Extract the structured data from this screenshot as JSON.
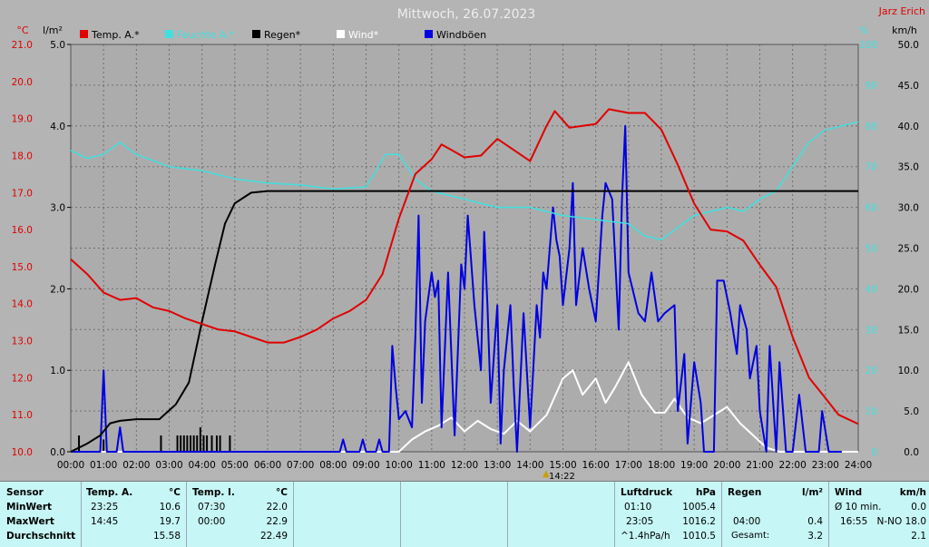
{
  "title": "Mittwoch, 26.07.2023",
  "brand": "Jarz Erich",
  "colors": {
    "bg": "#b4b4b4",
    "plot": "#acacac",
    "temp": "#e00000",
    "humidity": "#40e0e0",
    "rain": "#000000",
    "wind": "#ffffff",
    "gusts": "#0000e0",
    "panel": "#c6f6f5"
  },
  "legend": [
    "Temp. A.*",
    "Feuchte A.*",
    "Regen*",
    "Wind*",
    "Windböen"
  ],
  "units": {
    "temp": "°C",
    "rain": "l/m²",
    "humidity": "%",
    "wind": "km/h"
  },
  "marker_label": "14:22",
  "chart_data": {
    "type": "line",
    "title": "Mittwoch, 26.07.2023",
    "x_ticks": [
      "00:00",
      "01:00",
      "02:00",
      "03:00",
      "04:00",
      "05:00",
      "06:00",
      "07:00",
      "08:00",
      "09:00",
      "10:00",
      "11:00",
      "12:00",
      "13:00",
      "14:00",
      "15:00",
      "16:00",
      "17:00",
      "18:00",
      "19:00",
      "20:00",
      "21:00",
      "22:00",
      "23:00",
      "24:00"
    ],
    "axes": {
      "temp": {
        "label": "°C",
        "range": [
          10.0,
          21.0
        ],
        "ticks": [
          "10.0",
          "11.0",
          "12.0",
          "13.0",
          "14.0",
          "15.0",
          "16.0",
          "17.0",
          "18.0",
          "19.0",
          "20.0",
          "21.0"
        ]
      },
      "rain": {
        "label": "l/m²",
        "range": [
          0.0,
          5.0
        ],
        "ticks": [
          "0.0",
          "1.0",
          "2.0",
          "3.0",
          "4.0",
          "5.0"
        ]
      },
      "humidity": {
        "label": "%",
        "range": [
          0,
          100
        ],
        "ticks": [
          "0",
          "10",
          "20",
          "30",
          "40",
          "50",
          "60",
          "70",
          "80",
          "90",
          "100"
        ]
      },
      "wind": {
        "label": "km/h",
        "range": [
          0.0,
          50.0
        ],
        "ticks": [
          "0.0",
          "5.0",
          "10.0",
          "15.0",
          "20.0",
          "25.0",
          "30.0",
          "35.0",
          "40.0",
          "45.0",
          "50.0"
        ]
      }
    },
    "grid": true,
    "legend_position": "top-left",
    "series": [
      {
        "name": "Temp. A.*",
        "axis": "temp",
        "points": [
          [
            0,
            15.2
          ],
          [
            0.5,
            14.8
          ],
          [
            1,
            14.3
          ],
          [
            1.5,
            14.1
          ],
          [
            2,
            14.15
          ],
          [
            2.5,
            13.9
          ],
          [
            3,
            13.8
          ],
          [
            3.5,
            13.6
          ],
          [
            4,
            13.45
          ],
          [
            4.5,
            13.3
          ],
          [
            5,
            13.25
          ],
          [
            5.5,
            13.1
          ],
          [
            6,
            12.95
          ],
          [
            6.5,
            12.95
          ],
          [
            7,
            13.1
          ],
          [
            7.5,
            13.3
          ],
          [
            8,
            13.6
          ],
          [
            8.5,
            13.8
          ],
          [
            9,
            14.1
          ],
          [
            9.5,
            14.8
          ],
          [
            10,
            16.3
          ],
          [
            10.5,
            17.5
          ],
          [
            11,
            17.9
          ],
          [
            11.3,
            18.3
          ],
          [
            11.6,
            18.15
          ],
          [
            12,
            17.95
          ],
          [
            12.5,
            18.0
          ],
          [
            13,
            18.45
          ],
          [
            13.5,
            18.15
          ],
          [
            14,
            17.85
          ],
          [
            14.5,
            18.8
          ],
          [
            14.75,
            19.2
          ],
          [
            15.2,
            18.75
          ],
          [
            15.6,
            18.8
          ],
          [
            16,
            18.85
          ],
          [
            16.4,
            19.25
          ],
          [
            17,
            19.15
          ],
          [
            17.5,
            19.15
          ],
          [
            18,
            18.7
          ],
          [
            18.5,
            17.75
          ],
          [
            19,
            16.7
          ],
          [
            19.5,
            16.0
          ],
          [
            20,
            15.95
          ],
          [
            20.5,
            15.7
          ],
          [
            21,
            15.05
          ],
          [
            21.5,
            14.45
          ],
          [
            22,
            13.1
          ],
          [
            22.5,
            12.0
          ],
          [
            23,
            11.45
          ],
          [
            23.4,
            11.0
          ],
          [
            24,
            10.75
          ]
        ]
      },
      {
        "name": "Feuchte A.*",
        "axis": "humidity",
        "points": [
          [
            0,
            74
          ],
          [
            0.5,
            72
          ],
          [
            1,
            73
          ],
          [
            1.5,
            76
          ],
          [
            2,
            73
          ],
          [
            3,
            70
          ],
          [
            4,
            69
          ],
          [
            5,
            67
          ],
          [
            6,
            66
          ],
          [
            7,
            65.5
          ],
          [
            8,
            64.5
          ],
          [
            9,
            65
          ],
          [
            9.6,
            73
          ],
          [
            10,
            73
          ],
          [
            10.5,
            67
          ],
          [
            11,
            64
          ],
          [
            11.5,
            63
          ],
          [
            12,
            62
          ],
          [
            13,
            60
          ],
          [
            14,
            60
          ],
          [
            14.5,
            59
          ],
          [
            15,
            58
          ],
          [
            16,
            57
          ],
          [
            17,
            56
          ],
          [
            17.5,
            53
          ],
          [
            18,
            52
          ],
          [
            18.5,
            55
          ],
          [
            19,
            58
          ],
          [
            19.5,
            59
          ],
          [
            20,
            60
          ],
          [
            20.5,
            59
          ],
          [
            21,
            62
          ],
          [
            21.5,
            64
          ],
          [
            22,
            70
          ],
          [
            22.5,
            76
          ],
          [
            23,
            79
          ],
          [
            23.5,
            80
          ],
          [
            24,
            81
          ]
        ]
      },
      {
        "name": "Regen*",
        "axis": "rain",
        "points": [
          [
            0,
            0
          ],
          [
            0.5,
            0.1
          ],
          [
            0.9,
            0.2
          ],
          [
            1.2,
            0.35
          ],
          [
            1.5,
            0.38
          ],
          [
            2,
            0.4
          ],
          [
            2.7,
            0.4
          ],
          [
            3.2,
            0.58
          ],
          [
            3.6,
            0.85
          ],
          [
            4,
            1.6
          ],
          [
            4.4,
            2.3
          ],
          [
            4.7,
            2.8
          ],
          [
            5,
            3.05
          ],
          [
            5.5,
            3.18
          ],
          [
            6,
            3.2
          ],
          [
            24,
            3.2
          ]
        ]
      },
      {
        "name": "Wind*",
        "axis": "wind",
        "points": [
          [
            0,
            0
          ],
          [
            10,
            0
          ],
          [
            10.4,
            1.5
          ],
          [
            10.8,
            2.5
          ],
          [
            11.2,
            3.2
          ],
          [
            11.6,
            4.2
          ],
          [
            12,
            2.5
          ],
          [
            12.4,
            3.8
          ],
          [
            12.8,
            2.8
          ],
          [
            13.2,
            2.2
          ],
          [
            13.6,
            3.8
          ],
          [
            14,
            2.5
          ],
          [
            14.5,
            4.5
          ],
          [
            15,
            9
          ],
          [
            15.3,
            10
          ],
          [
            15.6,
            7
          ],
          [
            16,
            9
          ],
          [
            16.3,
            6
          ],
          [
            16.6,
            8
          ],
          [
            17,
            11
          ],
          [
            17.4,
            7
          ],
          [
            17.8,
            4.8
          ],
          [
            18.1,
            4.8
          ],
          [
            18.4,
            6.5
          ],
          [
            18.8,
            4.2
          ],
          [
            19.2,
            3.5
          ],
          [
            19.6,
            4.5
          ],
          [
            20,
            5.5
          ],
          [
            20.4,
            3.5
          ],
          [
            20.8,
            2.0
          ],
          [
            21.2,
            0.5
          ],
          [
            21.6,
            0
          ],
          [
            24,
            0
          ]
        ]
      },
      {
        "name": "Windböen",
        "axis": "wind",
        "points": [
          [
            0,
            0
          ],
          [
            0.9,
            0
          ],
          [
            1.0,
            10
          ],
          [
            1.1,
            0
          ],
          [
            1.4,
            0
          ],
          [
            1.5,
            3
          ],
          [
            1.6,
            0
          ],
          [
            8.2,
            0
          ],
          [
            8.3,
            1.5
          ],
          [
            8.4,
            0
          ],
          [
            8.8,
            0
          ],
          [
            8.9,
            1.5
          ],
          [
            9.0,
            0
          ],
          [
            9.3,
            0
          ],
          [
            9.4,
            1.5
          ],
          [
            9.5,
            0
          ],
          [
            9.7,
            0
          ],
          [
            9.8,
            13
          ],
          [
            9.9,
            8
          ],
          [
            10,
            4
          ],
          [
            10.2,
            5
          ],
          [
            10.4,
            3
          ],
          [
            10.5,
            14
          ],
          [
            10.6,
            29
          ],
          [
            10.7,
            6
          ],
          [
            10.8,
            16
          ],
          [
            11,
            22
          ],
          [
            11.1,
            19
          ],
          [
            11.2,
            21
          ],
          [
            11.3,
            3
          ],
          [
            11.5,
            22
          ],
          [
            11.7,
            2
          ],
          [
            11.9,
            23
          ],
          [
            12,
            20
          ],
          [
            12.1,
            29
          ],
          [
            12.3,
            18
          ],
          [
            12.5,
            10
          ],
          [
            12.6,
            27
          ],
          [
            12.7,
            18
          ],
          [
            12.8,
            6
          ],
          [
            13.0,
            18
          ],
          [
            13.1,
            1
          ],
          [
            13.2,
            10
          ],
          [
            13.4,
            18
          ],
          [
            13.5,
            8
          ],
          [
            13.6,
            0
          ],
          [
            13.8,
            17
          ],
          [
            14,
            3
          ],
          [
            14.2,
            18
          ],
          [
            14.3,
            14
          ],
          [
            14.4,
            22
          ],
          [
            14.5,
            20
          ],
          [
            14.7,
            30
          ],
          [
            14.8,
            26
          ],
          [
            14.9,
            24
          ],
          [
            15.0,
            18
          ],
          [
            15.2,
            25
          ],
          [
            15.3,
            33
          ],
          [
            15.4,
            18
          ],
          [
            15.6,
            25
          ],
          [
            15.8,
            20
          ],
          [
            16,
            16
          ],
          [
            16.2,
            29
          ],
          [
            16.3,
            33
          ],
          [
            16.5,
            31
          ],
          [
            16.7,
            15
          ],
          [
            16.8,
            31
          ],
          [
            16.9,
            40
          ],
          [
            17.0,
            22
          ],
          [
            17.3,
            17
          ],
          [
            17.5,
            16
          ],
          [
            17.7,
            22
          ],
          [
            17.9,
            16
          ],
          [
            18.1,
            17
          ],
          [
            18.4,
            18
          ],
          [
            18.5,
            5
          ],
          [
            18.7,
            12
          ],
          [
            18.8,
            1
          ],
          [
            19.0,
            11
          ],
          [
            19.2,
            6
          ],
          [
            19.3,
            0
          ],
          [
            19.6,
            0
          ],
          [
            19.7,
            21
          ],
          [
            19.9,
            21
          ],
          [
            20.1,
            17
          ],
          [
            20.3,
            12
          ],
          [
            20.4,
            18
          ],
          [
            20.6,
            15
          ],
          [
            20.7,
            9
          ],
          [
            20.9,
            13
          ],
          [
            21.0,
            5
          ],
          [
            21.2,
            0
          ],
          [
            21.3,
            13
          ],
          [
            21.5,
            0
          ],
          [
            21.6,
            11
          ],
          [
            21.8,
            0
          ],
          [
            22.0,
            0
          ],
          [
            22.2,
            7
          ],
          [
            22.4,
            0
          ],
          [
            22.8,
            0
          ],
          [
            22.9,
            5
          ],
          [
            23.1,
            0
          ],
          [
            23.5,
            0
          ]
        ]
      }
    ],
    "rain_bars": [
      [
        0.25,
        0.2
      ],
      [
        1.0,
        0.15
      ],
      [
        2.75,
        0.2
      ],
      [
        3.25,
        0.2
      ],
      [
        3.35,
        0.2
      ],
      [
        3.45,
        0.2
      ],
      [
        3.55,
        0.2
      ],
      [
        3.65,
        0.2
      ],
      [
        3.75,
        0.2
      ],
      [
        3.85,
        0.2
      ],
      [
        3.95,
        0.3
      ],
      [
        4.05,
        0.2
      ],
      [
        4.15,
        0.2
      ],
      [
        4.3,
        0.2
      ],
      [
        4.45,
        0.2
      ],
      [
        4.55,
        0.2
      ],
      [
        4.85,
        0.2
      ]
    ]
  },
  "stats": {
    "headers": {
      "sensor": "Sensor",
      "temp_a": "Temp. A.",
      "temp_a_unit": "°C",
      "temp_i": "Temp. I.",
      "temp_i_unit": "°C",
      "pressure": "Luftdruck",
      "pressure_unit": "hPa",
      "rain": "Regen",
      "rain_unit": "l/m²",
      "wind": "Wind",
      "wind_unit": "km/h"
    },
    "row_labels": [
      "MinWert",
      "MaxWert",
      "Durchschnitt"
    ],
    "temp_a": [
      [
        "23:25",
        "10.6"
      ],
      [
        "14:45",
        "19.7"
      ],
      [
        "",
        "15.58"
      ]
    ],
    "temp_i": [
      [
        "07:30",
        "22.0"
      ],
      [
        "00:00",
        "22.9"
      ],
      [
        "",
        "22.49"
      ]
    ],
    "pressure": [
      [
        "01:10",
        "1005.4"
      ],
      [
        "23:05",
        "1016.2"
      ],
      [
        "^1.4hPa/h",
        "1010.5"
      ]
    ],
    "rain": [
      [
        "",
        ""
      ],
      [
        "04:00",
        "0.4"
      ],
      [
        "Gesamt:",
        "3.2"
      ]
    ],
    "wind": [
      [
        "Ø 10 min.",
        "0.0"
      ],
      [
        "16:55",
        "N-NO 18.0"
      ],
      [
        "",
        "2.1"
      ]
    ]
  }
}
